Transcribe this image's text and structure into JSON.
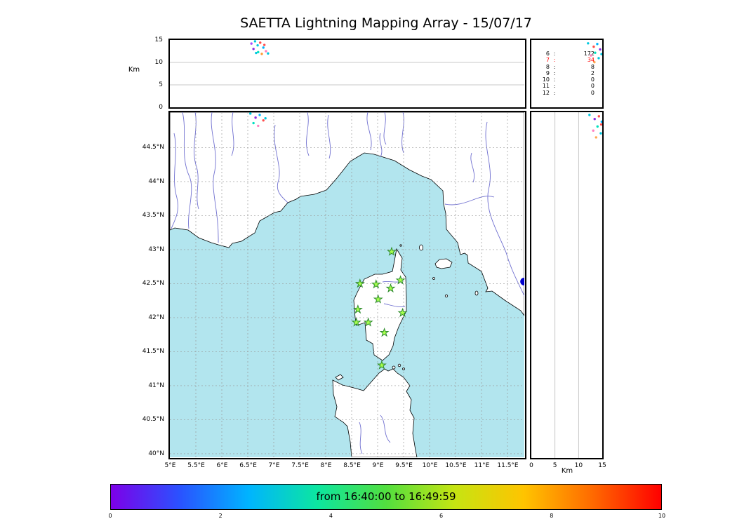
{
  "title": "SAETTA Lightning Mapping Array - 15/07/17",
  "colors": {
    "sea": "#b2e5ee",
    "land": "#ffffff",
    "coast": "#000000",
    "river": "#7070d0",
    "map_grid": "#999999",
    "panel_grid": "#b8b8b8",
    "station_fill": "#a6ff4d",
    "station_edge": "#2e8b2e",
    "buoy": "#0000cd",
    "highlight": "#ff0000"
  },
  "chart_data": [
    {
      "type": "scatter",
      "name": "altitude-vs-longitude",
      "ylabel": "Km",
      "yticks": [
        0,
        5,
        10,
        15
      ],
      "ylim": [
        0,
        15
      ],
      "xlim": [
        5.0,
        11.83
      ],
      "grid_km": [
        5,
        10
      ],
      "points": [
        {
          "lon": 6.57,
          "alt": 14.2,
          "c": "#a64dff"
        },
        {
          "lon": 6.64,
          "alt": 14.7,
          "c": "#00c8e0"
        },
        {
          "lon": 6.69,
          "alt": 13.8,
          "c": "#00c8e0"
        },
        {
          "lon": 6.74,
          "alt": 14.4,
          "c": "#ff4d4d"
        },
        {
          "lon": 6.8,
          "alt": 13.3,
          "c": "#00b4ff"
        },
        {
          "lon": 6.85,
          "alt": 12.5,
          "c": "#ff80c0"
        },
        {
          "lon": 6.89,
          "alt": 12.0,
          "c": "#00c8e0"
        },
        {
          "lon": 6.61,
          "alt": 13.0,
          "c": "#8a2be2"
        },
        {
          "lon": 6.7,
          "alt": 12.3,
          "c": "#00e0c0"
        },
        {
          "lon": 6.77,
          "alt": 11.9,
          "c": "#ff9933"
        },
        {
          "lon": 6.66,
          "alt": 12.1,
          "c": "#00c8e0"
        },
        {
          "lon": 6.82,
          "alt": 13.9,
          "c": "#ff4d4d"
        }
      ]
    },
    {
      "type": "table",
      "name": "source-counts-by-altitude",
      "rows": [
        [
          "6",
          "172"
        ],
        [
          "7",
          "34"
        ],
        [
          "8",
          "8"
        ],
        [
          "9",
          "2"
        ],
        [
          "10",
          "0"
        ],
        [
          "11",
          "0"
        ],
        [
          "12",
          "0"
        ]
      ],
      "highlight_row": 1,
      "points": [
        {
          "fx": 0.8,
          "fy": 0.05,
          "c": "#00c8e0"
        },
        {
          "fx": 0.88,
          "fy": 0.1,
          "c": "#ff4d4d"
        },
        {
          "fx": 0.93,
          "fy": 0.06,
          "c": "#00b4ff"
        },
        {
          "fx": 0.97,
          "fy": 0.14,
          "c": "#8a2be2"
        },
        {
          "fx": 0.9,
          "fy": 0.19,
          "c": "#00e0c0"
        },
        {
          "fx": 0.84,
          "fy": 0.23,
          "c": "#ff80c0"
        },
        {
          "fx": 0.95,
          "fy": 0.27,
          "c": "#00c8e0"
        },
        {
          "fx": 0.89,
          "fy": 0.33,
          "c": "#ffa64d"
        },
        {
          "fx": 0.99,
          "fy": 0.21,
          "c": "#00c8e0"
        }
      ]
    },
    {
      "type": "map",
      "name": "plan-view",
      "lon_ticks": [
        "5°E",
        "5.5°E",
        "6°E",
        "6.5°E",
        "7°E",
        "7.5°E",
        "8°E",
        "8.5°E",
        "9°E",
        "9.5°E",
        "10°E",
        "10.5°E",
        "11°E",
        "11.5°E"
      ],
      "lat_ticks": [
        "44.5°N",
        "44°N",
        "43.5°N",
        "43°N",
        "42.5°N",
        "42°N",
        "41.5°N",
        "41°N",
        "40.5°N",
        "40°N"
      ],
      "lon_range": [
        5.0,
        11.83
      ],
      "lat_range": [
        39.95,
        45.02
      ],
      "grid_step_deg": 0.5,
      "stations": [
        [
          9.27,
          42.97
        ],
        [
          8.66,
          42.5
        ],
        [
          8.97,
          42.49
        ],
        [
          9.25,
          42.43
        ],
        [
          9.44,
          42.55
        ],
        [
          9.01,
          42.27
        ],
        [
          8.62,
          42.12
        ],
        [
          9.48,
          42.07
        ],
        [
          8.59,
          41.93
        ],
        [
          8.82,
          41.93
        ],
        [
          9.13,
          41.78
        ],
        [
          9.08,
          41.3
        ]
      ],
      "buoy": {
        "lon": 11.82,
        "lat": 42.53
      },
      "points": [
        {
          "lon": 6.55,
          "lat": 45.0,
          "c": "#00c8e0"
        },
        {
          "lon": 6.65,
          "lat": 44.94,
          "c": "#8a2be2"
        },
        {
          "lon": 6.73,
          "lat": 44.98,
          "c": "#00b4ff"
        },
        {
          "lon": 6.8,
          "lat": 44.9,
          "c": "#ff4d4d"
        },
        {
          "lon": 6.61,
          "lat": 44.86,
          "c": "#00e0c0"
        },
        {
          "lon": 6.7,
          "lat": 44.82,
          "c": "#ff80c0"
        },
        {
          "lon": 6.84,
          "lat": 44.93,
          "c": "#00c8e0"
        }
      ]
    },
    {
      "type": "scatter",
      "name": "altitude-vs-latitude",
      "xlabel": "Km",
      "xticks": [
        0,
        5,
        10,
        15
      ],
      "xlim": [
        0,
        15
      ],
      "grid_km": [
        5,
        10
      ],
      "points": [
        {
          "alt": 12.3,
          "lat": 44.98,
          "c": "#00c8e0"
        },
        {
          "alt": 13.4,
          "lat": 44.92,
          "c": "#8a2be2"
        },
        {
          "alt": 14.3,
          "lat": 44.96,
          "c": "#ff4d4d"
        },
        {
          "alt": 14.9,
          "lat": 44.88,
          "c": "#00b4ff"
        },
        {
          "alt": 14.0,
          "lat": 44.81,
          "c": "#00e0c0"
        },
        {
          "alt": 13.1,
          "lat": 44.75,
          "c": "#ff80c0"
        },
        {
          "alt": 14.7,
          "lat": 44.71,
          "c": "#00c8e0"
        },
        {
          "alt": 13.7,
          "lat": 44.65,
          "c": "#ffa64d"
        },
        {
          "alt": 14.8,
          "lat": 44.84,
          "c": "#ff4d4d"
        }
      ]
    },
    {
      "type": "colorbar",
      "label": "from 16:40:00 to 16:49:59",
      "ticks": [
        0,
        2,
        4,
        6,
        8,
        10
      ],
      "range": [
        0,
        10
      ],
      "gradient": [
        "#7d00e8",
        "#2a52ff",
        "#00b4ff",
        "#0ce6a0",
        "#52df3f",
        "#c6e412",
        "#ffc400",
        "#ff6a00",
        "#ff0000"
      ]
    }
  ]
}
